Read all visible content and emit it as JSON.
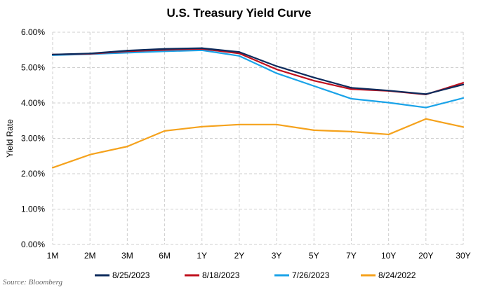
{
  "chart_data": {
    "type": "line",
    "title": "U.S. Treasury Yield Curve",
    "ylabel": "Yield Rate",
    "xlabel": "",
    "categories": [
      "1M",
      "2M",
      "3M",
      "6M",
      "1Y",
      "2Y",
      "3Y",
      "5Y",
      "7Y",
      "10Y",
      "20Y",
      "30Y"
    ],
    "ylim": [
      0,
      6
    ],
    "yticks": [
      "0.00%",
      "1.00%",
      "2.00%",
      "3.00%",
      "4.00%",
      "5.00%",
      "6.00%"
    ],
    "grid": true,
    "legend_position": "bottom",
    "series": [
      {
        "name": "8/25/2023",
        "color": "#0d2b5c",
        "values": [
          5.37,
          5.4,
          5.48,
          5.53,
          5.55,
          5.44,
          5.04,
          4.72,
          4.43,
          4.35,
          4.25,
          4.52
        ]
      },
      {
        "name": "8/18/2023",
        "color": "#c0111e",
        "values": [
          5.37,
          5.39,
          5.46,
          5.5,
          5.53,
          5.4,
          4.95,
          4.63,
          4.39,
          4.34,
          4.24,
          4.57
        ]
      },
      {
        "name": "7/26/2023",
        "color": "#1aa3e8",
        "values": [
          5.35,
          5.38,
          5.42,
          5.46,
          5.49,
          5.33,
          4.84,
          4.48,
          4.12,
          4.01,
          3.87,
          4.14
        ]
      },
      {
        "name": "8/24/2022",
        "color": "#f5a21c",
        "values": [
          2.17,
          2.54,
          2.77,
          3.21,
          3.33,
          3.39,
          3.39,
          3.23,
          3.19,
          3.11,
          3.55,
          3.32
        ]
      }
    ]
  },
  "source": "Source: Bloomberg"
}
